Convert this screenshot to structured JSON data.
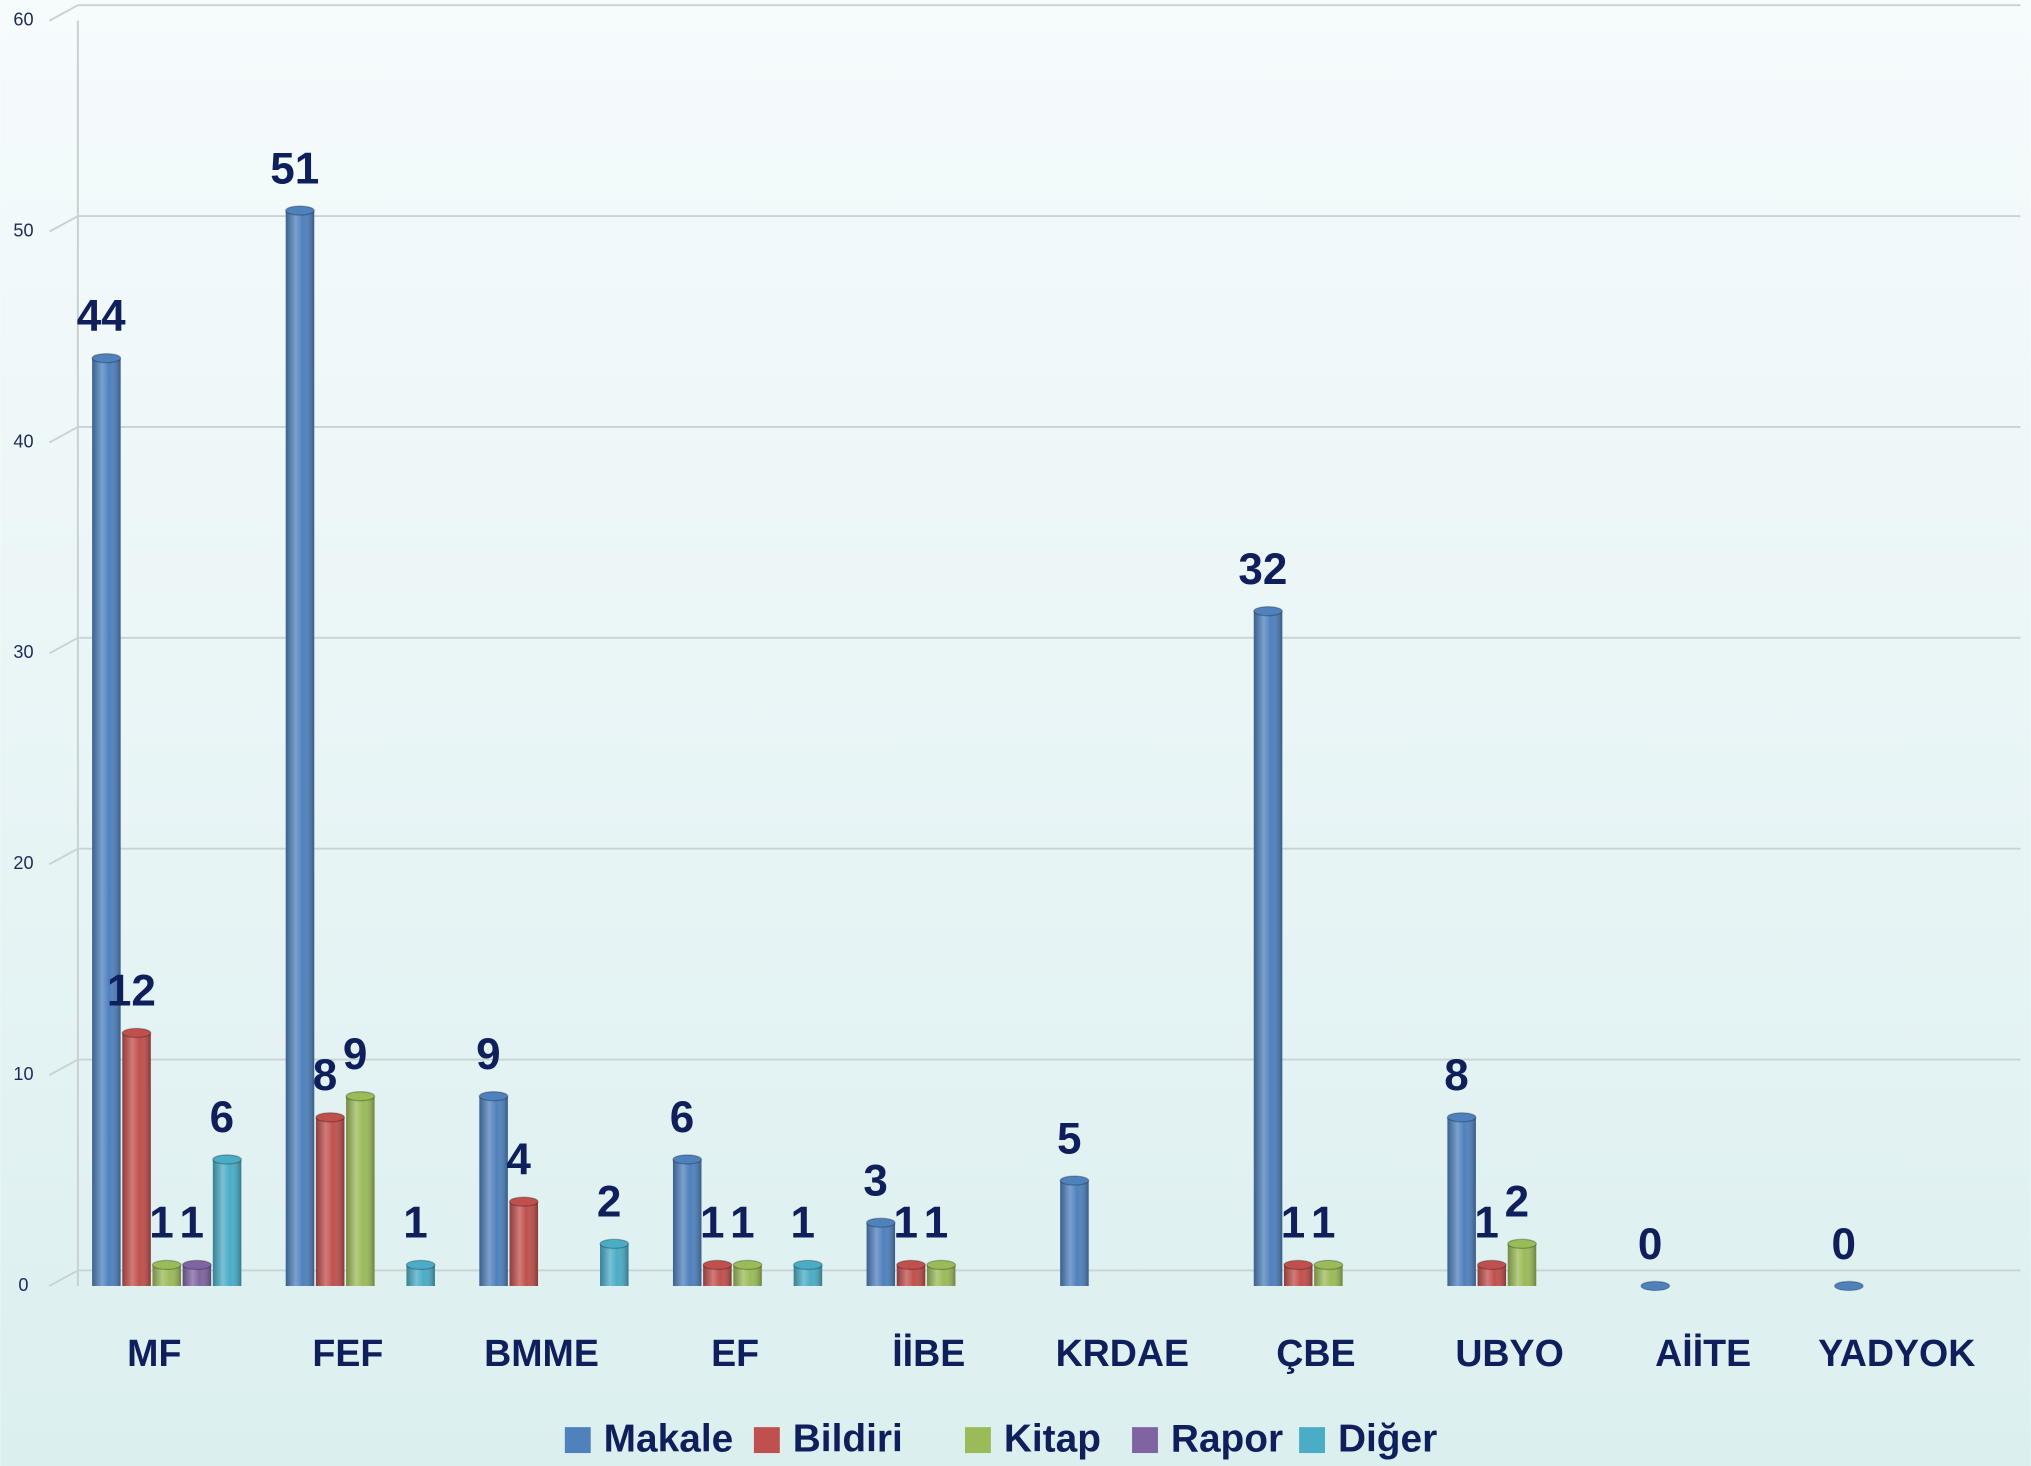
{
  "chart_data": {
    "type": "bar",
    "categories": [
      "MF",
      "FEF",
      "BMME",
      "EF",
      "İİBE",
      "KRDAE",
      "ÇBE",
      "UBYO",
      "AİİTE",
      "YADYOK"
    ],
    "series": [
      {
        "name": "Makale",
        "color": "#4f81bd",
        "values": [
          44,
          51,
          9,
          6,
          3,
          5,
          32,
          8,
          0,
          0
        ]
      },
      {
        "name": "Bildiri",
        "color": "#c0504d",
        "values": [
          12,
          8,
          4,
          1,
          1,
          null,
          1,
          1,
          null,
          null
        ]
      },
      {
        "name": "Kitap",
        "color": "#9bbb59",
        "values": [
          1,
          9,
          null,
          1,
          1,
          null,
          1,
          2,
          null,
          null
        ]
      },
      {
        "name": "Rapor",
        "color": "#8064a2",
        "values": [
          1,
          null,
          null,
          null,
          null,
          null,
          null,
          null,
          null,
          null
        ]
      },
      {
        "name": "Diğer",
        "color": "#4bacc6",
        "values": [
          6,
          1,
          2,
          1,
          null,
          null,
          null,
          null,
          null,
          null
        ]
      }
    ],
    "ylim": [
      0,
      60
    ],
    "yticks": [
      0,
      10,
      20,
      30,
      40,
      50,
      60
    ],
    "grid": true,
    "legend": "bottom"
  }
}
